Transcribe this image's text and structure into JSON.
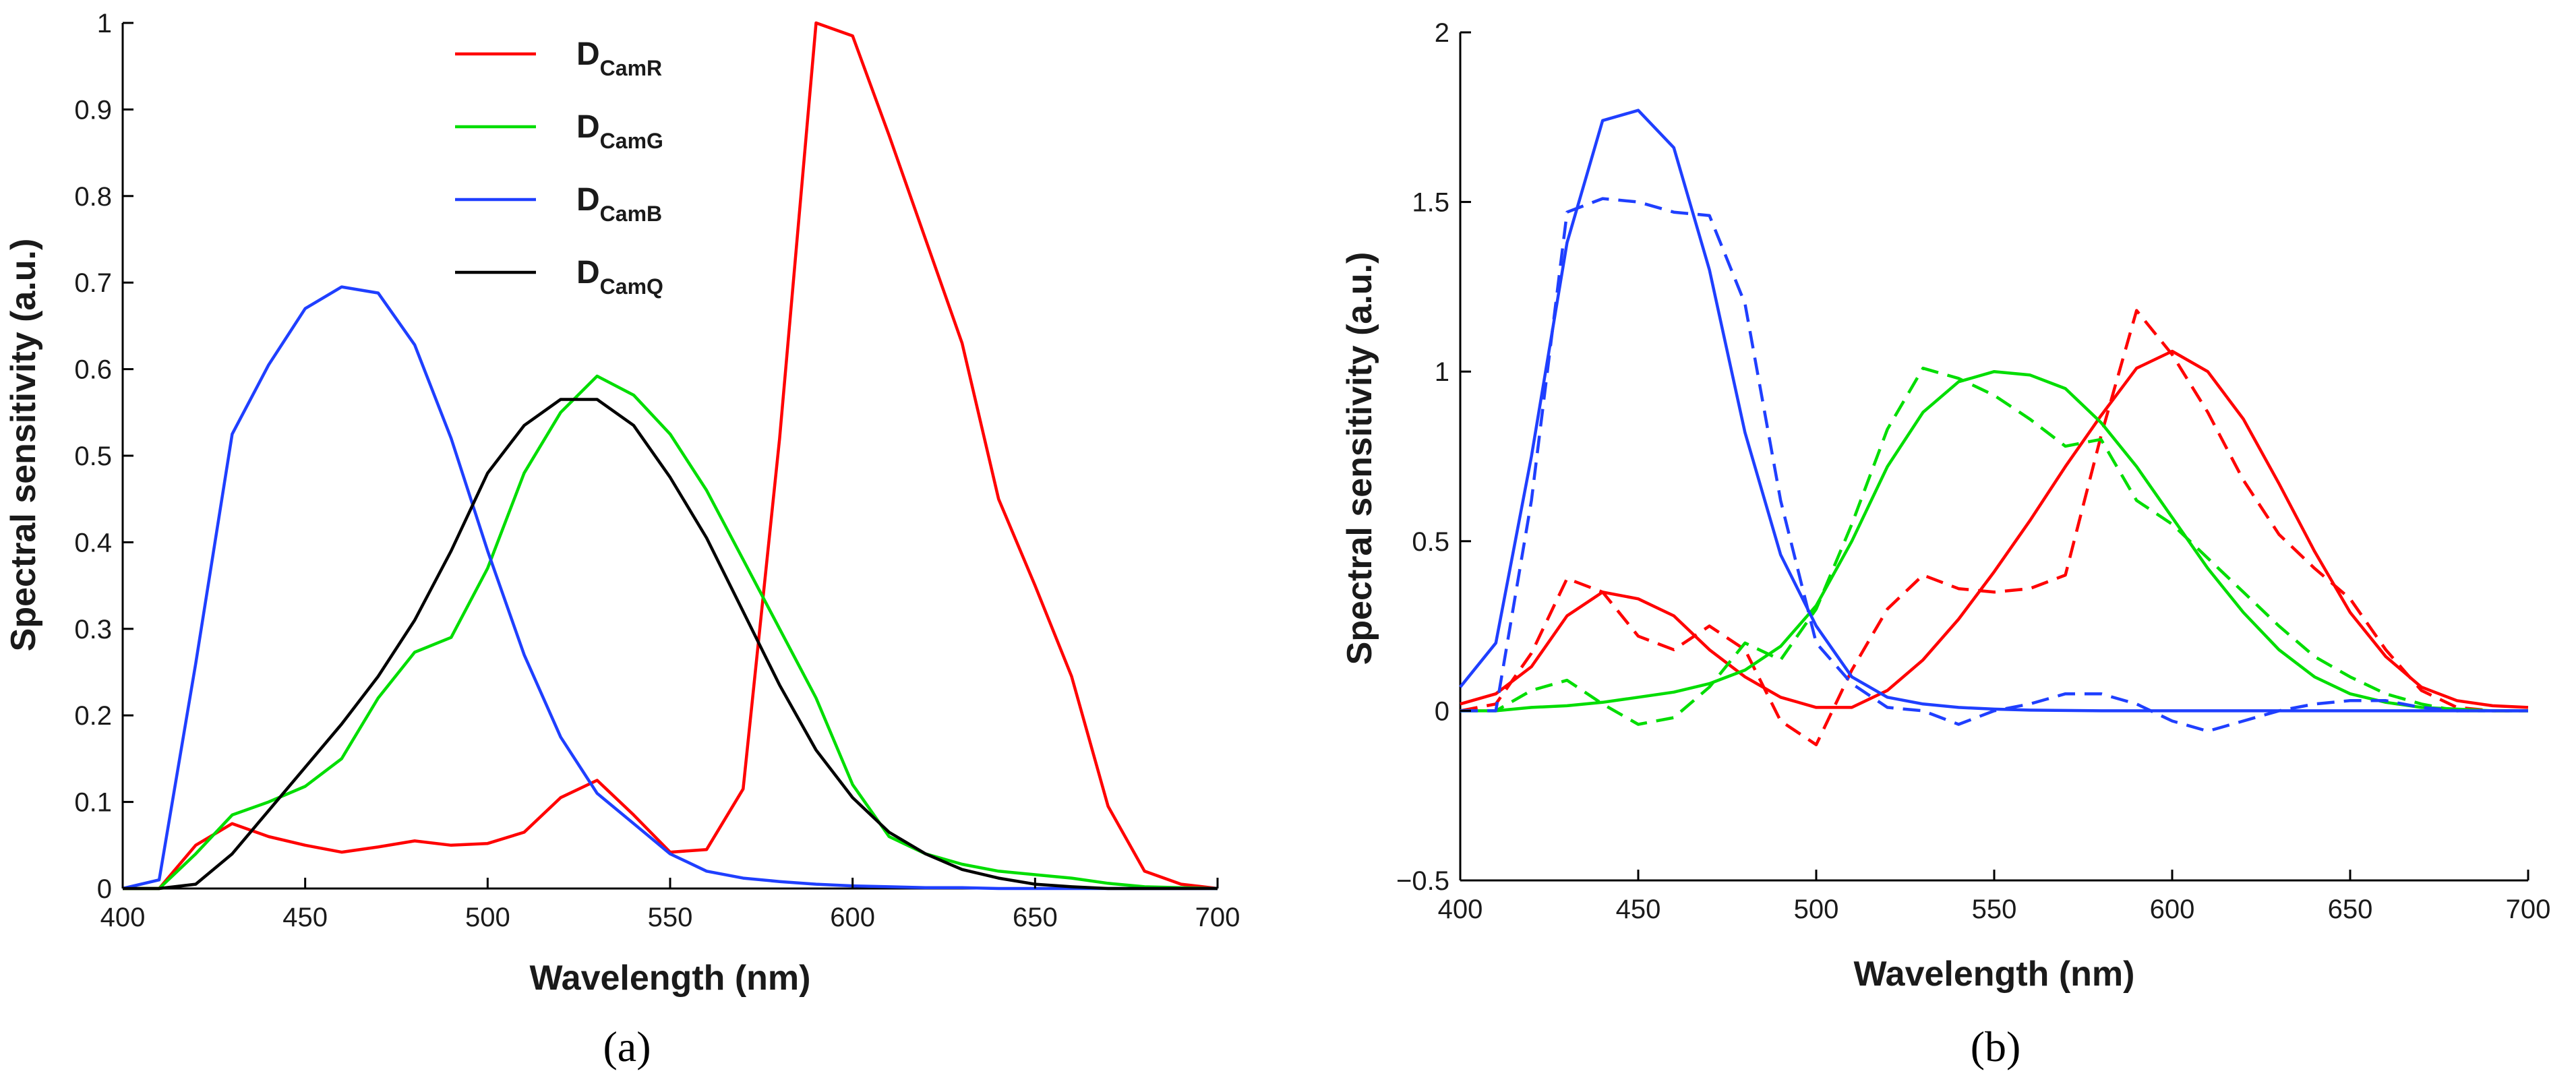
{
  "chart_data": [
    {
      "type": "line",
      "panel_label": "(a)",
      "xlabel": "Wavelength (nm)",
      "ylabel": "Spectral sensitivity (a.u.)",
      "xlim": [
        400,
        700
      ],
      "ylim": [
        0,
        1
      ],
      "xticks": [
        400,
        450,
        500,
        550,
        600,
        650,
        700
      ],
      "yticks": [
        0,
        0.1,
        0.2,
        0.3,
        0.4,
        0.5,
        0.6,
        0.7,
        0.8,
        0.9,
        1
      ],
      "ytick_labels": [
        "0",
        "0.1",
        "0.2",
        "0.3",
        "0.4",
        "0.5",
        "0.6",
        "0.7",
        "0.8",
        "0.9",
        "1"
      ],
      "grid": false,
      "legend_placement": "top-center",
      "x": [
        400,
        410,
        420,
        430,
        440,
        450,
        460,
        470,
        480,
        490,
        500,
        510,
        520,
        530,
        540,
        550,
        560,
        570,
        580,
        590,
        600,
        610,
        620,
        630,
        640,
        650,
        660,
        670,
        680,
        690,
        700
      ],
      "series": [
        {
          "name_main": "D",
          "name_sub": "CamR",
          "color": "#ff0000",
          "dash": "solid",
          "values": [
            0,
            0,
            0.05,
            0.075,
            0.06,
            0.05,
            0.042,
            0.048,
            0.055,
            0.05,
            0.052,
            0.065,
            0.105,
            0.125,
            0.085,
            0.042,
            0.045,
            0.115,
            0.52,
            1.0,
            0.985,
            0.87,
            0.75,
            0.63,
            0.45,
            0.35,
            0.245,
            0.095,
            0.02,
            0.005,
            0
          ]
        },
        {
          "name_main": "D",
          "name_sub": "CamG",
          "color": "#00dd00",
          "dash": "solid",
          "values": [
            0,
            0,
            0.04,
            0.085,
            0.1,
            0.118,
            0.15,
            0.22,
            0.273,
            0.29,
            0.37,
            0.48,
            0.55,
            0.592,
            0.57,
            0.525,
            0.46,
            0.38,
            0.3,
            0.22,
            0.12,
            0.06,
            0.04,
            0.028,
            0.02,
            0.016,
            0.012,
            0.006,
            0.002,
            0.001,
            0
          ]
        },
        {
          "name_main": "D",
          "name_sub": "CamB",
          "color": "#1f3fff",
          "dash": "solid",
          "values": [
            0,
            0.01,
            0.26,
            0.525,
            0.605,
            0.67,
            0.695,
            0.688,
            0.628,
            0.52,
            0.39,
            0.27,
            0.175,
            0.11,
            0.075,
            0.04,
            0.02,
            0.012,
            0.008,
            0.005,
            0.003,
            0.002,
            0.001,
            0.001,
            0,
            0,
            0,
            0,
            0,
            0,
            0
          ]
        },
        {
          "name_main": "D",
          "name_sub": "CamQ",
          "color": "#000000",
          "dash": "solid",
          "values": [
            0,
            0,
            0.005,
            0.04,
            0.09,
            0.14,
            0.19,
            0.245,
            0.31,
            0.39,
            0.48,
            0.535,
            0.565,
            0.565,
            0.535,
            0.475,
            0.405,
            0.32,
            0.235,
            0.16,
            0.105,
            0.065,
            0.04,
            0.022,
            0.012,
            0.005,
            0.002,
            0,
            0,
            0,
            0
          ]
        }
      ]
    },
    {
      "type": "line",
      "panel_label": "(b)",
      "xlabel": "Wavelength (nm)",
      "ylabel": "Spectral sensitivity (a.u.)",
      "xlim": [
        400,
        700
      ],
      "ylim": [
        -0.5,
        2
      ],
      "xticks": [
        400,
        450,
        500,
        550,
        600,
        650,
        700
      ],
      "yticks": [
        -0.5,
        0,
        0.5,
        1,
        1.5,
        2
      ],
      "ytick_labels": [
        "−0.5",
        "0",
        "0.5",
        "1",
        "1.5",
        "2"
      ],
      "grid": false,
      "x": [
        400,
        410,
        420,
        430,
        440,
        450,
        460,
        470,
        480,
        490,
        500,
        510,
        520,
        530,
        540,
        550,
        560,
        570,
        580,
        590,
        600,
        610,
        620,
        630,
        640,
        650,
        660,
        670,
        680,
        690,
        700
      ],
      "series": [
        {
          "color": "#ff0000",
          "dash": "solid",
          "values": [
            0.02,
            0.05,
            0.13,
            0.28,
            0.35,
            0.33,
            0.28,
            0.18,
            0.1,
            0.04,
            0.01,
            0.01,
            0.06,
            0.15,
            0.27,
            0.41,
            0.56,
            0.72,
            0.87,
            1.01,
            1.06,
            1.0,
            0.86,
            0.67,
            0.47,
            0.29,
            0.16,
            0.07,
            0.03,
            0.015,
            0.01
          ]
        },
        {
          "color": "#ff0000",
          "dash": "dashed",
          "values": [
            0.0,
            0.02,
            0.17,
            0.39,
            0.35,
            0.22,
            0.18,
            0.25,
            0.18,
            -0.03,
            -0.1,
            0.12,
            0.3,
            0.4,
            0.36,
            0.35,
            0.36,
            0.4,
            0.81,
            1.18,
            1.05,
            0.88,
            0.68,
            0.52,
            0.42,
            0.33,
            0.18,
            0.06,
            0.01,
            0.0,
            0.0
          ]
        },
        {
          "color": "#00dd00",
          "dash": "solid",
          "values": [
            0.0,
            0.0,
            0.01,
            0.015,
            0.025,
            0.04,
            0.055,
            0.08,
            0.12,
            0.19,
            0.31,
            0.5,
            0.72,
            0.88,
            0.97,
            1.0,
            0.99,
            0.95,
            0.85,
            0.72,
            0.57,
            0.42,
            0.29,
            0.18,
            0.1,
            0.05,
            0.025,
            0.01,
            0.005,
            0.0,
            0.0
          ]
        },
        {
          "color": "#00dd00",
          "dash": "dashed",
          "values": [
            0.0,
            0.0,
            0.06,
            0.09,
            0.02,
            -0.04,
            -0.02,
            0.07,
            0.2,
            0.15,
            0.3,
            0.55,
            0.83,
            1.01,
            0.98,
            0.93,
            0.86,
            0.78,
            0.8,
            0.62,
            0.55,
            0.45,
            0.35,
            0.25,
            0.16,
            0.1,
            0.05,
            0.02,
            0.0,
            0.0,
            0.0
          ]
        },
        {
          "color": "#1f3fff",
          "dash": "solid",
          "values": [
            0.07,
            0.2,
            0.75,
            1.38,
            1.74,
            1.77,
            1.66,
            1.3,
            0.82,
            0.46,
            0.25,
            0.1,
            0.04,
            0.02,
            0.01,
            0.005,
            0.002,
            0.001,
            0.0,
            0.0,
            0.0,
            0.0,
            0.0,
            0.0,
            0.0,
            0.0,
            0.0,
            0.0,
            0.0,
            0.0,
            0.0
          ]
        },
        {
          "color": "#1f3fff",
          "dash": "dashed",
          "values": [
            0.0,
            0.0,
            0.62,
            1.47,
            1.51,
            1.5,
            1.47,
            1.46,
            1.2,
            0.62,
            0.2,
            0.08,
            0.01,
            0.0,
            -0.04,
            0.0,
            0.02,
            0.05,
            0.05,
            0.02,
            -0.03,
            -0.06,
            -0.03,
            0.0,
            0.02,
            0.03,
            0.03,
            0.01,
            0.0,
            0.0,
            0.0
          ]
        }
      ]
    }
  ]
}
